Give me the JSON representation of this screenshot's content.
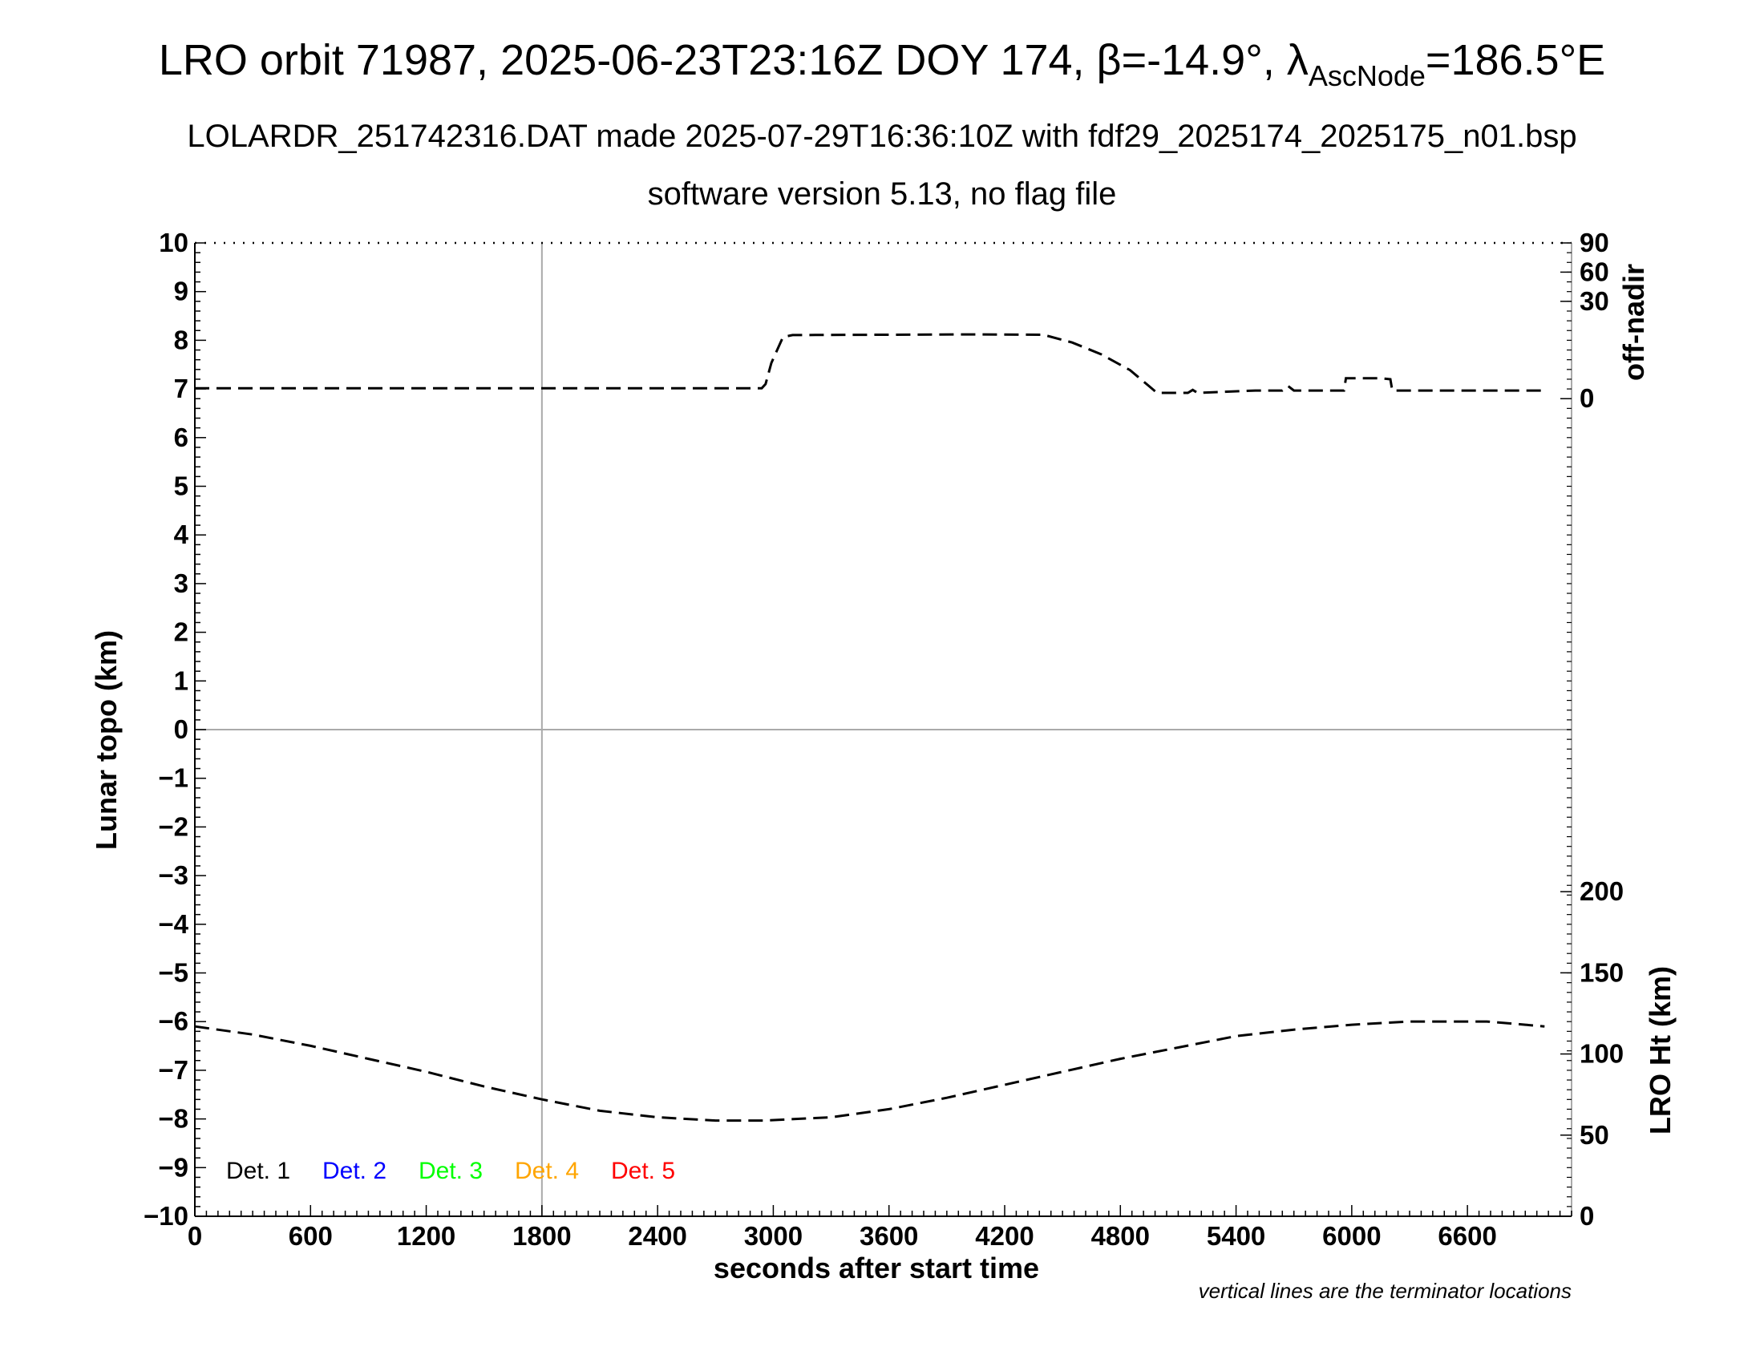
{
  "header": {
    "title_main": "LRO orbit 71987, 2025-06-23T23:16Z DOY 174, β=-14.9°, λ",
    "title_sub": "AscNode",
    "title_tail": "=186.5°E",
    "subtitle1": "LOLARDR_251742316.DAT made 2025-07-29T16:36:10Z with fdf29_2025174_2025175_n01.bsp",
    "subtitle2": "software version 5.13, no flag file"
  },
  "chart_data": {
    "type": "line",
    "xlabel": "seconds after start time",
    "ylabel_left": "Lunar topo (km)",
    "ylabel_right_top": "off-nadir",
    "ylabel_right_bottom": "LRO Ht (km)",
    "xlim": [
      0,
      7140
    ],
    "ylim_left": [
      -10,
      10
    ],
    "x_ticks": [
      0,
      600,
      1200,
      1800,
      2400,
      3000,
      3600,
      4200,
      4800,
      5400,
      6000,
      6600
    ],
    "y_ticks_left": [
      -10,
      -9,
      -8,
      -7,
      -6,
      -5,
      -4,
      -3,
      -2,
      -1,
      0,
      1,
      2,
      3,
      4,
      5,
      6,
      7,
      8,
      9,
      10
    ],
    "y_ticks_right_offnadir": [
      0,
      30,
      60,
      90
    ],
    "y_ticks_right_height": [
      0,
      50,
      100,
      150,
      200
    ],
    "terminator_lines_x": [
      1800
    ],
    "legend": [
      {
        "label": "Det. 1",
        "color": "#000000"
      },
      {
        "label": "Det. 2",
        "color": "#0000ff"
      },
      {
        "label": "Det. 3",
        "color": "#00ff00"
      },
      {
        "label": "Det. 4",
        "color": "#ffa500"
      },
      {
        "label": "Det. 5",
        "color": "#ff0000"
      }
    ],
    "series": [
      {
        "axis": "off-nadir",
        "x": [
          0,
          600,
          1200,
          1800,
          2400,
          2940,
          2960,
          2990,
          3050,
          3100,
          3600,
          4000,
          4400,
          4550,
          4700,
          4850,
          4950,
          4990,
          5150,
          5175,
          5200,
          5500,
          5640,
          5670,
          5700,
          5960,
          5970,
          6030,
          6150,
          6200,
          6210,
          6600,
          7000
        ],
        "y": [
          3.2,
          3.2,
          3.2,
          3.2,
          3.2,
          3.2,
          4.5,
          11,
          19,
          19.6,
          19.7,
          19.8,
          19.7,
          17.3,
          13.7,
          8.8,
          3.8,
          1.8,
          1.8,
          2.7,
          1.8,
          2.5,
          2.5,
          3.9,
          2.5,
          2.5,
          6.3,
          6.3,
          6.3,
          6.0,
          2.5,
          2.5,
          2.5
        ]
      },
      {
        "axis": "LRO Ht (km)",
        "x": [
          0,
          300,
          600,
          900,
          1200,
          1500,
          1800,
          2100,
          2400,
          2700,
          2950,
          3300,
          3600,
          3900,
          4200,
          4500,
          4800,
          5100,
          5400,
          5700,
          6000,
          6300,
          6500,
          6700,
          6900,
          7000
        ],
        "y": [
          117,
          112,
          105,
          97,
          89,
          80,
          72,
          65,
          61,
          59,
          59,
          61,
          66,
          73,
          81,
          89,
          97,
          104,
          111,
          115,
          118,
          120,
          120,
          120,
          118,
          117
        ]
      }
    ],
    "footnote": "vertical lines are the terminator locations"
  }
}
